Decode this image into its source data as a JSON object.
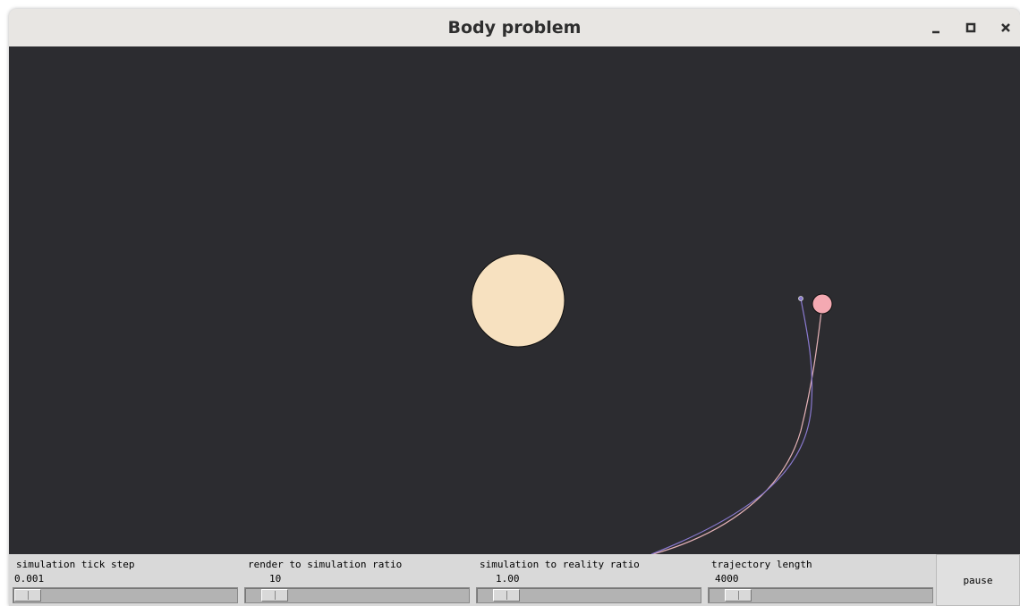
{
  "window": {
    "title": "Body problem"
  },
  "controls": [
    {
      "label": "simulation tick step",
      "value": "0.001"
    },
    {
      "label": "render to simulation ratio",
      "value": "10"
    },
    {
      "label": "simulation to reality ratio",
      "value": "1.00"
    },
    {
      "label": "trajectory length",
      "value": "4000"
    }
  ],
  "button": {
    "label": "pause"
  }
}
